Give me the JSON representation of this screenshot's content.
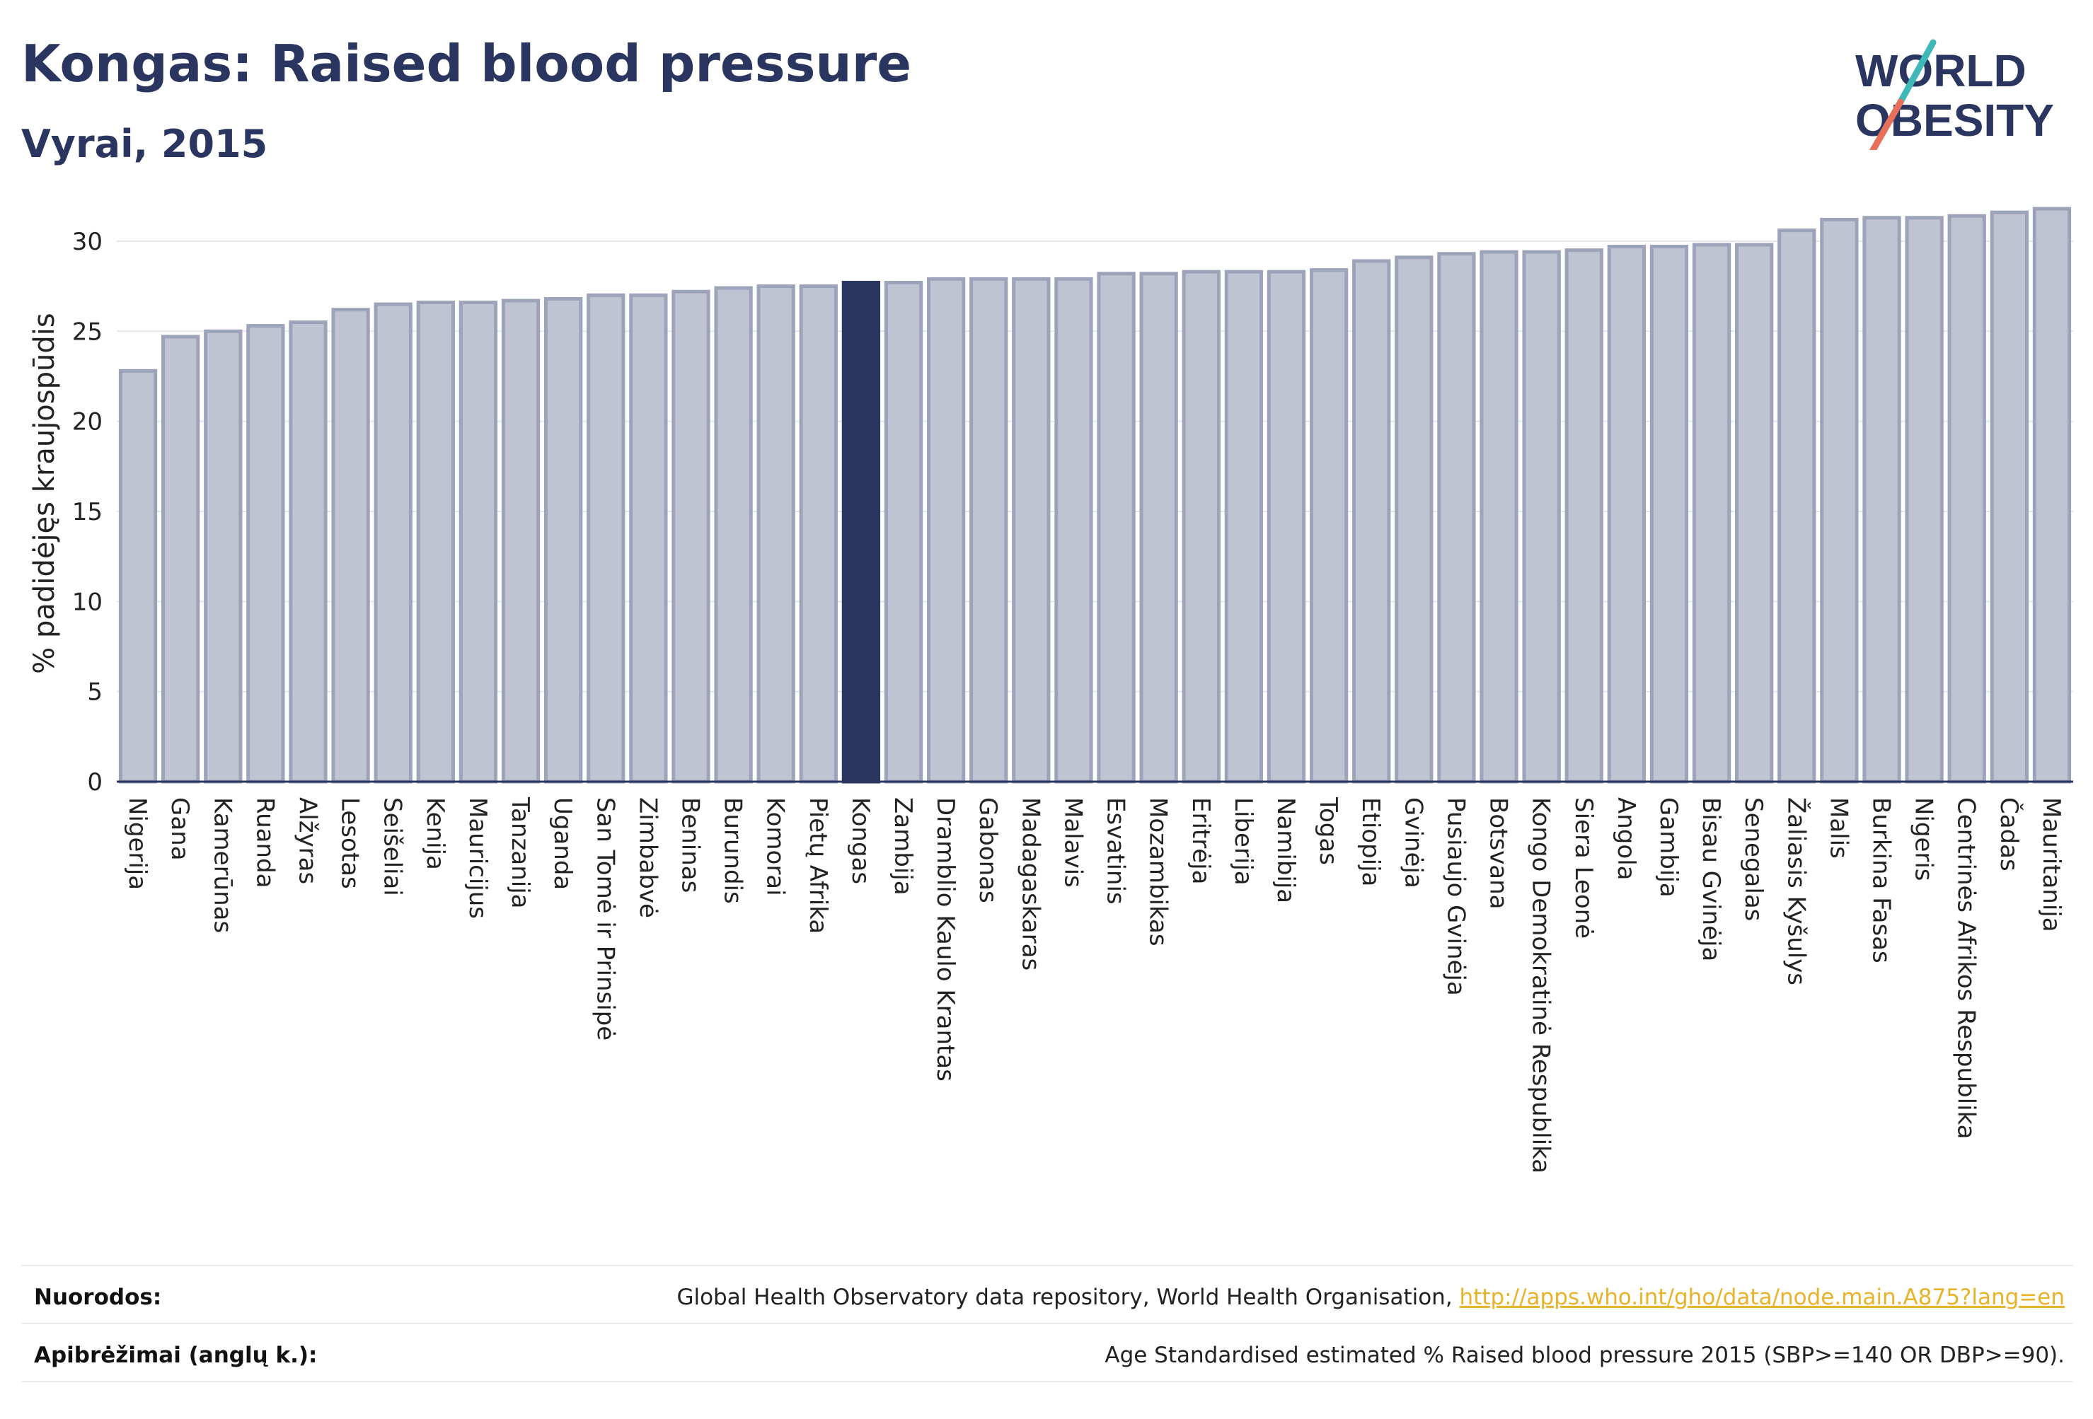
{
  "header": {
    "title": "Kongas: Raised blood pressure",
    "subtitle": "Vyrai, 2015"
  },
  "logo": {
    "line1": "WORLD",
    "line2": "OBESITY",
    "colors": {
      "text": "#2a3560",
      "slash_teal": "#3fb8b8",
      "slash_red": "#e8705a"
    }
  },
  "colors": {
    "bar_default": "#bfc3d2",
    "bar_border": "#9da3b9",
    "bar_highlight": "#2a3560",
    "grid": "#e4e6ec",
    "axis": "#2a3560"
  },
  "chart_data": {
    "type": "bar",
    "ylabel": "% padidėjęs kraujospūdis",
    "ylim": [
      0,
      32
    ],
    "yticks": [
      0,
      5,
      10,
      15,
      20,
      25,
      30
    ],
    "grid": true,
    "highlight": "Kongas",
    "categories": [
      "Nigerija",
      "Gana",
      "Kamerūnas",
      "Ruanda",
      "Alžyras",
      "Lesotas",
      "Seišeliai",
      "Kenija",
      "Mauricijus",
      "Tanzanija",
      "Uganda",
      "San Tomė ir Prinsipė",
      "Zimbabvė",
      "Beninas",
      "Burundis",
      "Komorai",
      "Pietų Afrika",
      "Kongas",
      "Zambija",
      "Dramblio Kaulo Krantas",
      "Gabonas",
      "Madagaskaras",
      "Malavis",
      "Esvatinis",
      "Mozambikas",
      "Eritrėja",
      "Liberija",
      "Namibija",
      "Togas",
      "Etiopija",
      "Gvinėja",
      "Pusiaujo Gvinėja",
      "Botsvana",
      "Kongo Demokratinė Respublika",
      "Siera Leonė",
      "Angola",
      "Gambija",
      "Bisau Gvinėja",
      "Senegalas",
      "Žaliasis Kyšulys",
      "Malis",
      "Burkina Fasas",
      "Nigeris",
      "Centrinės Afrikos Respublika",
      "Čadas",
      "Mauritanija"
    ],
    "values": [
      22.8,
      24.7,
      25.0,
      25.3,
      25.5,
      26.2,
      26.5,
      26.6,
      26.6,
      26.7,
      26.8,
      27.0,
      27.0,
      27.2,
      27.4,
      27.5,
      27.5,
      27.7,
      27.7,
      27.9,
      27.9,
      27.9,
      27.9,
      28.2,
      28.2,
      28.3,
      28.3,
      28.3,
      28.4,
      28.9,
      29.1,
      29.3,
      29.4,
      29.4,
      29.5,
      29.7,
      29.7,
      29.8,
      29.8,
      30.6,
      31.2,
      31.3,
      31.3,
      31.4,
      31.6,
      31.8
    ]
  },
  "footer": {
    "sources_label": "Nuorodos:",
    "sources_text": "Global Health Observatory data repository, World Health Organisation, ",
    "sources_link": "http://apps.who.int/gho/data/node.main.A875?lang=en",
    "definitions_label": "Apibrėžimai (anglų k.):",
    "definitions_text": "Age Standardised estimated % Raised blood pressure 2015 (SBP>=140 OR DBP>=90)."
  }
}
